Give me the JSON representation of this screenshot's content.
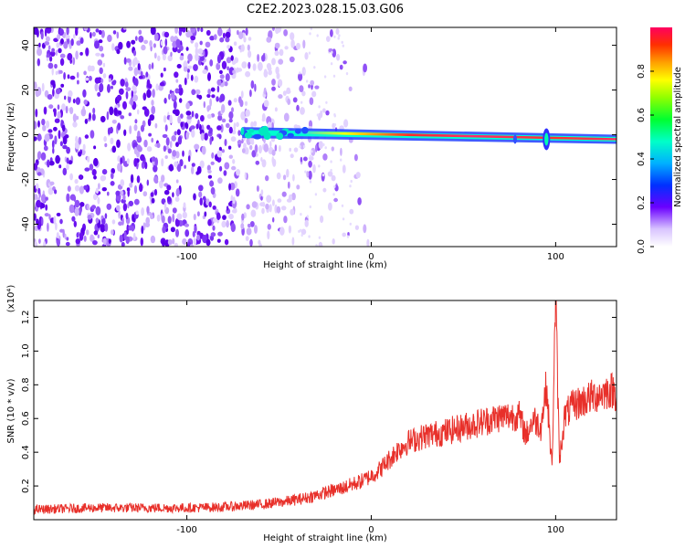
{
  "title": "C2E2.2023.028.15.03.G06",
  "chart_data": [
    {
      "type": "heatmap",
      "xlabel": "Height of straight line (km)",
      "ylabel": "Frequency (Hz)",
      "xlim": [
        -183,
        133
      ],
      "ylim": [
        -50,
        48
      ],
      "x_ticks": [
        -100,
        0,
        100
      ],
      "y_ticks": [
        -40,
        -20,
        0,
        20,
        40
      ],
      "colorbar": {
        "label": "Normalized spectral amplitude",
        "range": [
          0,
          1
        ],
        "ticks": [
          "0.0",
          "0.2",
          "0.4",
          "0.6",
          "0.8"
        ]
      },
      "features": {
        "noise_region_x": [
          -183,
          -35
        ],
        "signal_band_center_hz": [
          1,
          -2
        ],
        "signal_start_x": -70,
        "disturbance_x": 95
      }
    },
    {
      "type": "line",
      "xlabel": "Height of straight line (km)",
      "ylabel": "SNR (10 * v/v)",
      "scale_label": "(x10⁴)",
      "xlim": [
        -183,
        133
      ],
      "ylim": [
        0,
        1.3
      ],
      "x_ticks": [
        -100,
        0,
        100
      ],
      "y_ticks": [
        0.2,
        0.4,
        0.6,
        0.8,
        1.0,
        1.2
      ],
      "series": [
        {
          "color": "#e8302a",
          "x": [
            -183,
            -150,
            -120,
            -100,
            -80,
            -60,
            -45,
            -35,
            -25,
            -15,
            -5,
            0,
            5,
            10,
            15,
            20,
            30,
            40,
            50,
            60,
            70,
            80,
            84,
            88,
            92,
            95,
            98,
            100,
            102,
            105,
            110,
            120,
            130,
            133
          ],
          "values": [
            0.06,
            0.07,
            0.07,
            0.07,
            0.075,
            0.09,
            0.11,
            0.13,
            0.16,
            0.19,
            0.23,
            0.26,
            0.3,
            0.36,
            0.42,
            0.46,
            0.5,
            0.52,
            0.55,
            0.58,
            0.61,
            0.62,
            0.5,
            0.6,
            0.55,
            0.8,
            0.3,
            1.35,
            0.35,
            0.62,
            0.68,
            0.73,
            0.77,
            0.75
          ]
        }
      ]
    }
  ]
}
